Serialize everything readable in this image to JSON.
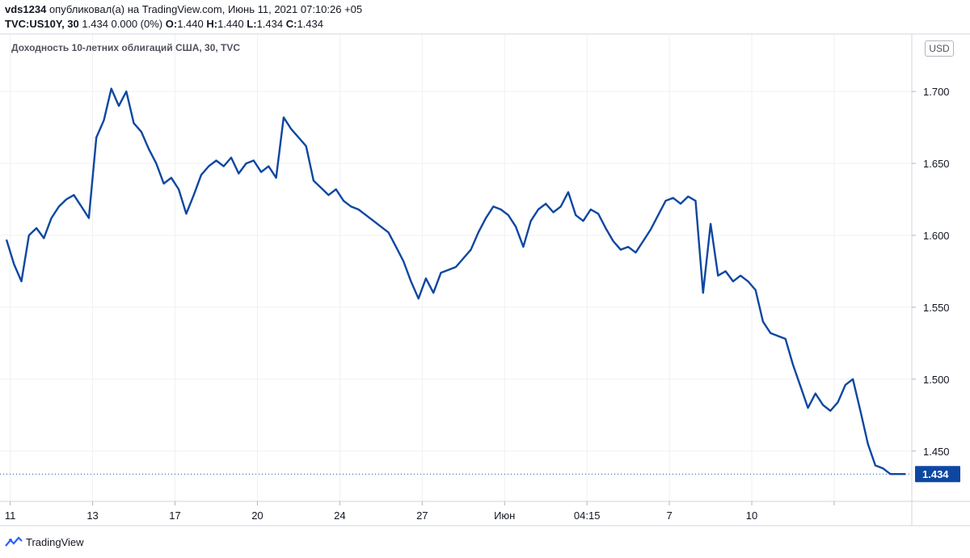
{
  "header": {
    "user": "vds1234",
    "published": "опубликовал(а) на TradingView.com, Июнь 11, 2021 07:10:26 +05",
    "symbol": "TVC:US10Y, 30",
    "quote": "1.434 0.000 (0%)",
    "open_label": "O:",
    "open": "1.440",
    "high_label": "H:",
    "high": "1.440",
    "low_label": "L:",
    "low": "1.434",
    "close_label": "C:",
    "close": "1.434"
  },
  "legend_title": "Доходность 10-летних облигаций США, 30, TVC",
  "currency_label": "USD",
  "brand": "TradingView",
  "colors": {
    "line": "#0d47a1",
    "grid": "#eef0f3",
    "price_tag": "#0d47a1"
  },
  "chart_data": {
    "type": "line",
    "title": "Доходность 10-летних облигаций США, 30, TVC",
    "ylabel": "USD",
    "ylim": [
      1.415,
      1.74
    ],
    "y_ticks": [
      1.45,
      1.5,
      1.55,
      1.6,
      1.65,
      1.7
    ],
    "y_tick_labels": [
      "1.450",
      "1.500",
      "1.550",
      "1.600",
      "1.650",
      "1.700"
    ],
    "x_ticks": [
      0.5,
      11.5,
      22.5,
      33.5,
      44.5,
      55.5,
      66.5,
      77.5,
      88.5,
      99.5,
      110.5
    ],
    "x_tick_labels": [
      "11",
      "13",
      "17",
      "20",
      "24",
      "27",
      "Июн",
      "04:15",
      "7",
      "10",
      ""
    ],
    "last_value": 1.434,
    "last_value_label": "1.434",
    "x": [
      0,
      1,
      2,
      3,
      4,
      5,
      6,
      7,
      8,
      9,
      10,
      11,
      12,
      13,
      14,
      15,
      16,
      17,
      18,
      19,
      20,
      21,
      22,
      23,
      24,
      25,
      26,
      27,
      28,
      29,
      30,
      31,
      32,
      33,
      34,
      35,
      36,
      37,
      38,
      39,
      40,
      41,
      42,
      43,
      44,
      45,
      46,
      47,
      48,
      49,
      50,
      51,
      52,
      53,
      54,
      55,
      56,
      57,
      58,
      59,
      60,
      61,
      62,
      63,
      64,
      65,
      66,
      67,
      68,
      69,
      70,
      71,
      72,
      73,
      74,
      75,
      76,
      77,
      78,
      79,
      80,
      81,
      82,
      83,
      84,
      85,
      86,
      87,
      88,
      89,
      90,
      91,
      92,
      93,
      94,
      95,
      96,
      97,
      98,
      99,
      100,
      101,
      102,
      103,
      104,
      105,
      106,
      107,
      108,
      109,
      110,
      111,
      112,
      113,
      114,
      115,
      116,
      117,
      118,
      119,
      120
    ],
    "values": [
      1.597,
      1.58,
      1.568,
      1.6,
      1.605,
      1.598,
      1.612,
      1.62,
      1.625,
      1.628,
      1.62,
      1.612,
      1.668,
      1.68,
      1.702,
      1.69,
      1.7,
      1.678,
      1.672,
      1.66,
      1.65,
      1.636,
      1.64,
      1.632,
      1.615,
      1.628,
      1.642,
      1.648,
      1.652,
      1.648,
      1.654,
      1.643,
      1.65,
      1.652,
      1.644,
      1.648,
      1.64,
      1.682,
      1.674,
      1.668,
      1.662,
      1.638,
      1.633,
      1.628,
      1.632,
      1.624,
      1.62,
      1.618,
      1.614,
      1.61,
      1.606,
      1.602,
      1.592,
      1.582,
      1.568,
      1.556,
      1.57,
      1.56,
      1.574,
      1.576,
      1.578,
      1.584,
      1.59,
      1.602,
      1.612,
      1.62,
      1.618,
      1.614,
      1.606,
      1.592,
      1.61,
      1.618,
      1.622,
      1.616,
      1.62,
      1.63,
      1.614,
      1.61,
      1.618,
      1.615,
      1.605,
      1.596,
      1.59,
      1.592,
      1.588,
      1.596,
      1.604,
      1.614,
      1.624,
      1.626,
      1.622,
      1.627,
      1.624,
      1.56,
      1.608,
      1.572,
      1.575,
      1.568,
      1.572,
      1.568,
      1.562,
      1.54,
      1.532,
      1.53,
      1.528,
      1.51,
      1.495,
      1.48,
      1.49,
      1.482,
      1.478,
      1.484,
      1.496,
      1.5,
      1.478,
      1.455,
      1.44,
      1.438,
      1.434,
      1.434,
      1.434
    ]
  }
}
